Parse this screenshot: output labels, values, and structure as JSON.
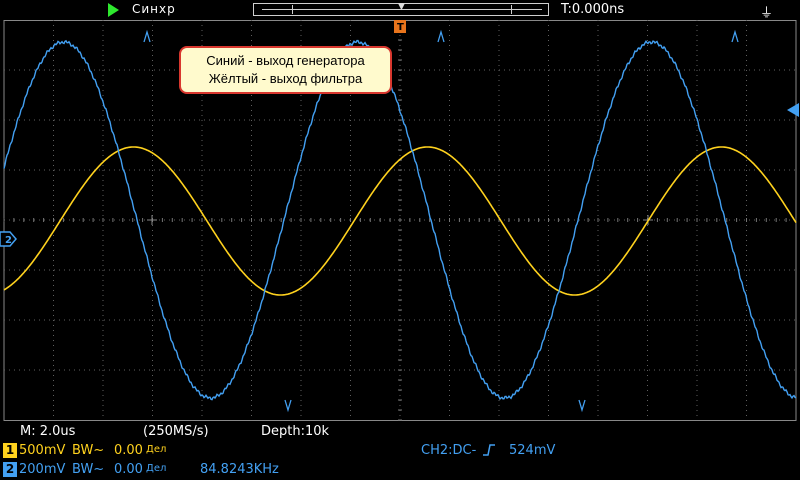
{
  "top_bar": {
    "run_state_icon": "play-icon",
    "trigger_state": "Синхр",
    "trigger_position_marker": "▼",
    "trigger_time": "T:0.000ns",
    "usb_icon": "usb-icon"
  },
  "annotation": {
    "line1": "Синий - выход генератора",
    "line2": "Жёлтый - выход фильтра",
    "fill_color": "#fffacd",
    "border_color": "#d8372e"
  },
  "markers": {
    "ch2_ref_label": "2",
    "trigger_marker_icon": "trigger-level-arrow-icon",
    "t_marker": "T"
  },
  "info": {
    "timebase": "M: 2.0us",
    "sample_rate": "(250MS/s)",
    "depth": "Depth:10k"
  },
  "ch1": {
    "number": "1",
    "scale": "500mV",
    "bw": "BW~",
    "offset": "0.00",
    "offset_unit": "Дел",
    "color": "#ffd21e"
  },
  "ch2": {
    "number": "2",
    "scale": "200mV",
    "bw": "BW~",
    "offset": "0.00",
    "offset_unit": "Дел",
    "frequency": "84.8243KHz",
    "color": "#43a0f2"
  },
  "trigger": {
    "source_coupling": "CH2:DC-",
    "edge_icon": "rising-edge-icon",
    "level": "524mV"
  },
  "colors": {
    "grid": "#606060",
    "background": "#000000",
    "yellow_trace": "#ffd21e",
    "blue_trace": "#43a0f2"
  }
}
